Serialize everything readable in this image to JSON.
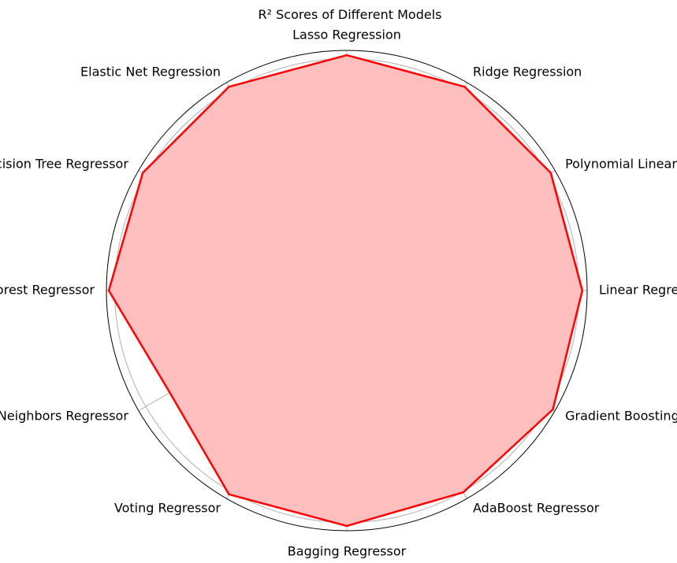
{
  "chart_data": {
    "type": "radar",
    "title": "R² Scores of Different Models",
    "categories": [
      "Linear Regression",
      "Polynomial Linear Regression",
      "Ridge Regression",
      "Lasso Regression",
      "Elastic Net Regression",
      "Decision Tree Regressor",
      "Random Forest Regressor",
      "K-Nearest Neighbors Regressor",
      "Voting Regressor",
      "Bagging Regressor",
      "AdaBoost Regressor",
      "Gradient Boosting Regressor"
    ],
    "series": [
      {
        "values": [
          0.98,
          0.98,
          0.98,
          0.98,
          0.98,
          0.98,
          0.99,
          0.85,
          0.98,
          0.98,
          0.97,
          0.99
        ]
      }
    ],
    "rlim": [
      0,
      1.0
    ],
    "rings": 7,
    "grid": true,
    "colors": {
      "line": "#ff0000",
      "fill": "#ffbfbf",
      "grid": "#b0b0b0",
      "frame": "#000000"
    }
  }
}
